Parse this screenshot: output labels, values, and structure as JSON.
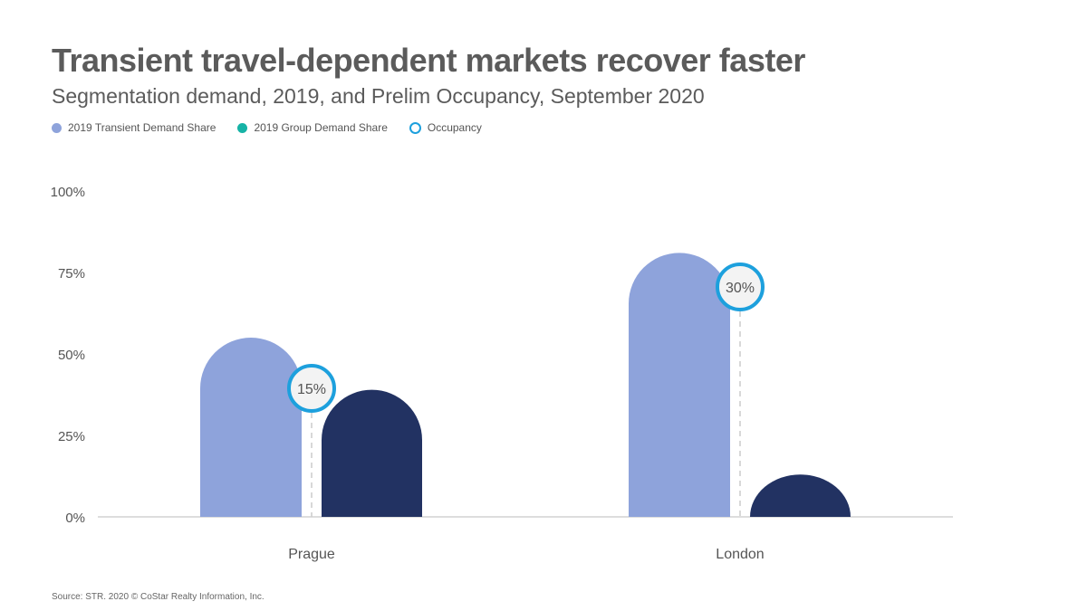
{
  "header": {
    "title": "Transient travel-dependent markets recover faster",
    "subtitle": "Segmentation demand, 2019, and Prelim Occupancy, September 2020"
  },
  "colors": {
    "transient": "#8ea3db",
    "group_legend": "#16b3a6",
    "group_bar": "#223262",
    "occupancy": "#1da0dd",
    "axis": "#bbbbbb"
  },
  "footer": {
    "source": "Source: STR. 2020 © CoStar Realty Information, Inc."
  },
  "chart_data": {
    "type": "bar",
    "title": "Transient travel-dependent markets recover faster",
    "subtitle": "Segmentation demand, 2019, and Prelim Occupancy, September 2020",
    "categories": [
      "Prague",
      "London"
    ],
    "series": [
      {
        "name": "2019 Transient Demand Share",
        "values": [
          55,
          81
        ]
      },
      {
        "name": "2019 Group Demand Share",
        "values": [
          39,
          13
        ]
      },
      {
        "name": "Occupancy",
        "values": [
          15,
          30
        ],
        "labels": [
          "15%",
          "30%"
        ]
      }
    ],
    "yticks": [
      "0%",
      "25%",
      "50%",
      "75%",
      "100%"
    ],
    "ylim": [
      0,
      100
    ],
    "legend_position": "top-left",
    "grid": false
  }
}
